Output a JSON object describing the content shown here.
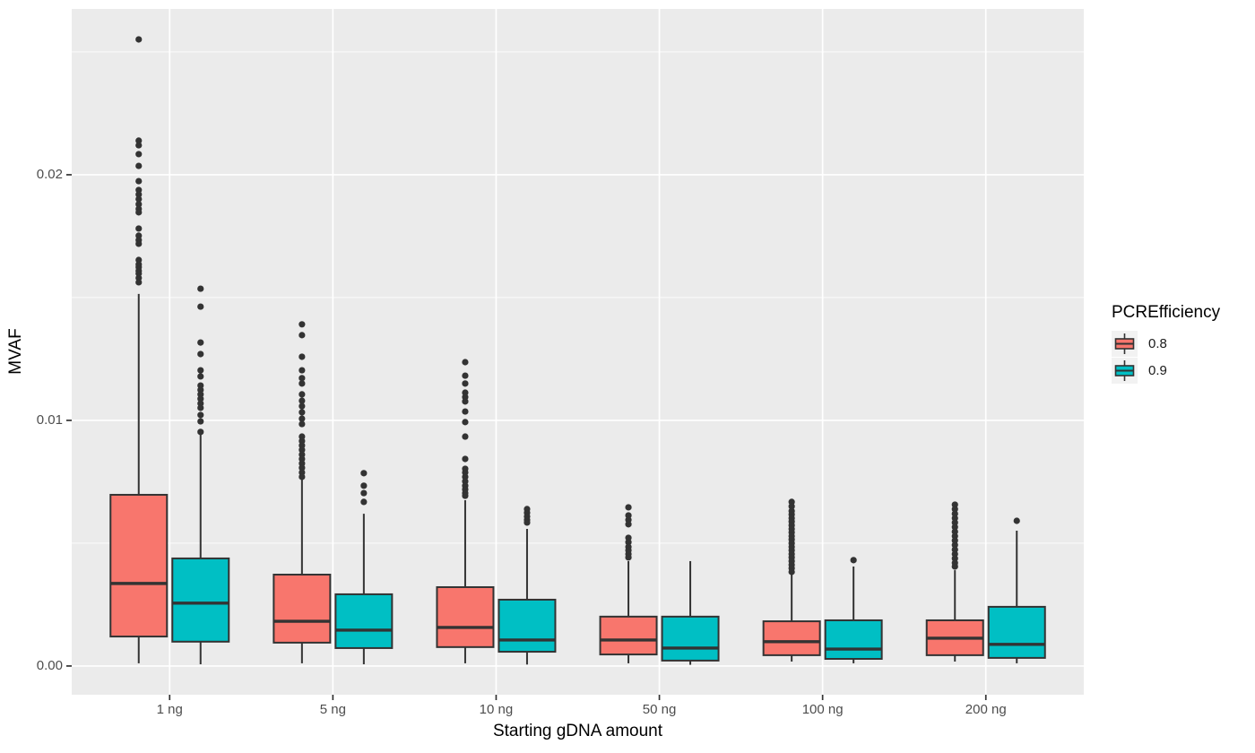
{
  "chart_data": {
    "type": "grouped_boxplot",
    "title": "",
    "xlabel": "Starting gDNA amount",
    "ylabel": "MVAF",
    "categories": [
      "1 ng",
      "5 ng",
      "10 ng",
      "50 ng",
      "100 ng",
      "200 ng"
    ],
    "y_ticks": [
      {
        "label": "0.00",
        "value": 0.0
      },
      {
        "label": "0.01",
        "value": 0.01
      },
      {
        "label": "0.02",
        "value": 0.02
      }
    ],
    "y_minor_values": [
      0.005,
      0.015,
      0.025
    ],
    "ylim": [
      -0.00117,
      0.02675
    ],
    "grid": "on",
    "legend_position": "right",
    "legend": {
      "title": "PCREfficiency",
      "entries": [
        {
          "label": "0.8",
          "color": "#F8766D"
        },
        {
          "label": "0.9",
          "color": "#00BFC4"
        }
      ]
    },
    "style": {
      "panel_bg": "#EBEBEB",
      "grid_color": "#FFFFFF",
      "outline_color": "#333333",
      "dot_color": "#333333",
      "tick_color": "#333333",
      "tick_text_color": "#4D4D4D",
      "legend_key_bg": "#F2F2F2"
    },
    "series": [
      {
        "name": "0.8",
        "color": "#F8766D",
        "boxes": [
          {
            "category": "1 ng",
            "whisker_low": 0.00011,
            "q1": 0.0012,
            "median": 0.00336,
            "q3": 0.00697,
            "whisker_high": 0.01515,
            "outliers": [
              0.02551,
              0.02139,
              0.0212,
              0.02084,
              0.02036,
              0.01974,
              0.01938,
              0.0192,
              0.01901,
              0.0188,
              0.01861,
              0.01847,
              0.01781,
              0.01752,
              0.01734,
              0.01719,
              0.01653,
              0.01635,
              0.01624,
              0.01609,
              0.01598,
              0.0158,
              0.01562
            ]
          },
          {
            "category": "5 ng",
            "whisker_low": 0.00011,
            "q1": 0.00095,
            "median": 0.00182,
            "q3": 0.00372,
            "whisker_high": 0.00766,
            "outliers": [
              0.01391,
              0.01347,
              0.01259,
              0.01204,
              0.01172,
              0.0115,
              0.01106,
              0.0108,
              0.01058,
              0.01033,
              0.01007,
              0.00985,
              0.00934,
              0.00916,
              0.00898,
              0.0088,
              0.00861,
              0.00843,
              0.00825,
              0.00807,
              0.00788,
              0.0077
            ]
          },
          {
            "category": "10 ng",
            "whisker_low": 0.00011,
            "q1": 0.00077,
            "median": 0.00157,
            "q3": 0.00321,
            "whisker_high": 0.00675,
            "outliers": [
              0.01237,
              0.01182,
              0.0115,
              0.01113,
              0.01095,
              0.01077,
              0.01036,
              0.00993,
              0.00934,
              0.00843,
              0.00803,
              0.00788,
              0.0077,
              0.00752,
              0.00734,
              0.00719,
              0.00704,
              0.00693
            ]
          },
          {
            "category": "50 ng",
            "whisker_low": 0.00011,
            "q1": 0.00047,
            "median": 0.00106,
            "q3": 0.00201,
            "whisker_high": 0.00427,
            "outliers": [
              0.00646,
              0.00613,
              0.00595,
              0.00577,
              0.00522,
              0.00504,
              0.00485,
              0.00471,
              0.00456,
              0.00442
            ]
          },
          {
            "category": "100 ng",
            "whisker_low": 0.00018,
            "q1": 0.00044,
            "median": 0.00099,
            "q3": 0.00182,
            "whisker_high": 0.00376,
            "outliers": [
              0.00668,
              0.0065,
              0.00631,
              0.00617,
              0.00602,
              0.00588,
              0.00573,
              0.00558,
              0.00544,
              0.00529,
              0.00515,
              0.005,
              0.00485,
              0.00471,
              0.00456,
              0.00442,
              0.00427,
              0.00412,
              0.00398,
              0.00383
            ]
          },
          {
            "category": "200 ng",
            "whisker_low": 0.00018,
            "q1": 0.00044,
            "median": 0.00113,
            "q3": 0.00186,
            "whisker_high": 0.0039,
            "outliers": [
              0.00657,
              0.00639,
              0.0062,
              0.00602,
              0.00584,
              0.00566,
              0.00547,
              0.00529,
              0.00511,
              0.00493,
              0.00474,
              0.00456,
              0.00438,
              0.0042,
              0.00405
            ]
          }
        ]
      },
      {
        "name": "0.9",
        "color": "#00BFC4",
        "boxes": [
          {
            "category": "1 ng",
            "whisker_low": 7e-05,
            "q1": 0.00099,
            "median": 0.00256,
            "q3": 0.00438,
            "whisker_high": 0.00942,
            "outliers": [
              0.01536,
              0.01463,
              0.01317,
              0.0127,
              0.01204,
              0.01179,
              0.01142,
              0.01124,
              0.01106,
              0.01088,
              0.01069,
              0.01051,
              0.01022,
              0.00996,
              0.00953
            ]
          },
          {
            "category": "5 ng",
            "whisker_low": 7e-05,
            "q1": 0.00073,
            "median": 0.00146,
            "q3": 0.00292,
            "whisker_high": 0.0062,
            "outliers": [
              0.00785,
              0.00734,
              0.00704,
              0.00668
            ]
          },
          {
            "category": "10 ng",
            "whisker_low": 6e-05,
            "q1": 0.00058,
            "median": 0.00106,
            "q3": 0.0027,
            "whisker_high": 0.00558,
            "outliers": [
              0.00639,
              0.00624,
              0.00609,
              0.00595,
              0.00584
            ]
          },
          {
            "category": "50 ng",
            "whisker_low": 5e-05,
            "q1": 0.00022,
            "median": 0.00073,
            "q3": 0.00201,
            "whisker_high": 0.00427,
            "outliers": []
          },
          {
            "category": "100 ng",
            "whisker_low": 0.00011,
            "q1": 0.00029,
            "median": 0.00069,
            "q3": 0.00186,
            "whisker_high": 0.00405,
            "outliers": [
              0.00431
            ]
          },
          {
            "category": "200 ng",
            "whisker_low": 0.00011,
            "q1": 0.00033,
            "median": 0.00088,
            "q3": 0.00241,
            "whisker_high": 0.00551,
            "outliers": [
              0.00591
            ]
          }
        ]
      }
    ]
  }
}
